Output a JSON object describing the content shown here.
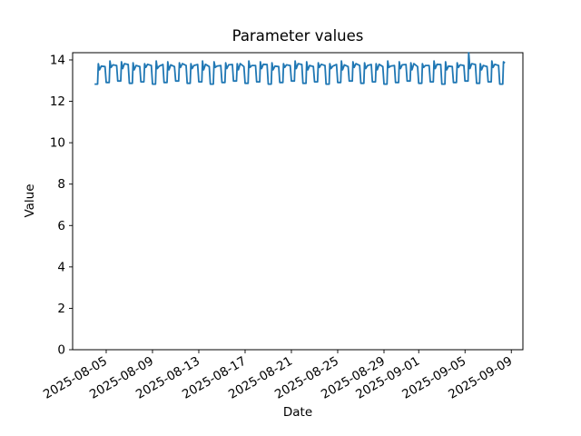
{
  "chart_data": {
    "type": "line",
    "title": "Parameter values",
    "xlabel": "Date",
    "ylabel": "Value",
    "legend": "none",
    "grid": false,
    "line_color": "#1f77b4",
    "axis_color": "#000000",
    "background_color": "#ffffff",
    "x_unit": "days since 2025-08-04T00:00",
    "xlim": [
      -1.9,
      37.0
    ],
    "ylim": [
      0,
      14.35
    ],
    "y_ticks": [
      0,
      2,
      4,
      6,
      8,
      10,
      12,
      14
    ],
    "x_ticks": [
      {
        "label": "2025-08-05",
        "d": 1
      },
      {
        "label": "2025-08-09",
        "d": 5
      },
      {
        "label": "2025-08-13",
        "d": 9
      },
      {
        "label": "2025-08-17",
        "d": 13
      },
      {
        "label": "2025-08-21",
        "d": 17
      },
      {
        "label": "2025-08-25",
        "d": 21
      },
      {
        "label": "2025-08-29",
        "d": 25
      },
      {
        "label": "2025-09-01",
        "d": 28
      },
      {
        "label": "2025-09-05",
        "d": 32
      },
      {
        "label": "2025-09-09",
        "d": 36
      }
    ],
    "points": [
      [
        0,
        12.83
      ],
      [
        0.26,
        12.83
      ],
      [
        0.32,
        13.82
      ],
      [
        0.42,
        13.52
      ],
      [
        0.58,
        13.7
      ],
      [
        0.9,
        13.68
      ],
      [
        1,
        12.91
      ],
      [
        1.26,
        12.91
      ],
      [
        1.32,
        13.95
      ],
      [
        1.42,
        13.64
      ],
      [
        1.58,
        13.76
      ],
      [
        1.9,
        13.73
      ],
      [
        2,
        12.98
      ],
      [
        2.26,
        12.98
      ],
      [
        2.32,
        13.91
      ],
      [
        2.42,
        13.58
      ],
      [
        2.58,
        13.82
      ],
      [
        2.9,
        13.78
      ],
      [
        3,
        12.87
      ],
      [
        3.26,
        12.87
      ],
      [
        3.32,
        13.86
      ],
      [
        3.42,
        13.52
      ],
      [
        3.58,
        13.73
      ],
      [
        3.9,
        13.68
      ],
      [
        4,
        12.94
      ],
      [
        4.26,
        12.94
      ],
      [
        4.32,
        13.82
      ],
      [
        4.42,
        13.64
      ],
      [
        4.58,
        13.79
      ],
      [
        4.9,
        13.73
      ],
      [
        5,
        12.83
      ],
      [
        5.26,
        12.83
      ],
      [
        5.32,
        13.95
      ],
      [
        5.42,
        13.58
      ],
      [
        5.58,
        13.7
      ],
      [
        5.9,
        13.78
      ],
      [
        6,
        12.91
      ],
      [
        6.26,
        12.91
      ],
      [
        6.32,
        13.91
      ],
      [
        6.42,
        13.52
      ],
      [
        6.58,
        13.76
      ],
      [
        6.9,
        13.68
      ],
      [
        7,
        12.98
      ],
      [
        7.26,
        12.98
      ],
      [
        7.32,
        13.86
      ],
      [
        7.42,
        13.64
      ],
      [
        7.58,
        13.82
      ],
      [
        7.9,
        13.73
      ],
      [
        8,
        12.87
      ],
      [
        8.26,
        12.87
      ],
      [
        8.32,
        13.82
      ],
      [
        8.42,
        13.58
      ],
      [
        8.58,
        13.73
      ],
      [
        8.9,
        13.78
      ],
      [
        9,
        12.94
      ],
      [
        9.26,
        12.94
      ],
      [
        9.32,
        13.95
      ],
      [
        9.42,
        13.52
      ],
      [
        9.58,
        13.79
      ],
      [
        9.9,
        13.68
      ],
      [
        10,
        12.83
      ],
      [
        10.26,
        12.83
      ],
      [
        10.32,
        13.91
      ],
      [
        10.42,
        13.64
      ],
      [
        10.58,
        13.7
      ],
      [
        10.9,
        13.73
      ],
      [
        11,
        12.91
      ],
      [
        11.26,
        12.91
      ],
      [
        11.32,
        13.86
      ],
      [
        11.42,
        13.58
      ],
      [
        11.58,
        13.76
      ],
      [
        11.9,
        13.78
      ],
      [
        12,
        12.98
      ],
      [
        12.26,
        12.98
      ],
      [
        12.32,
        13.82
      ],
      [
        12.42,
        13.52
      ],
      [
        12.58,
        13.82
      ],
      [
        12.9,
        13.68
      ],
      [
        13,
        12.87
      ],
      [
        13.26,
        12.87
      ],
      [
        13.32,
        13.95
      ],
      [
        13.42,
        13.64
      ],
      [
        13.58,
        13.73
      ],
      [
        13.9,
        13.73
      ],
      [
        14,
        12.94
      ],
      [
        14.26,
        12.94
      ],
      [
        14.32,
        13.91
      ],
      [
        14.42,
        13.58
      ],
      [
        14.58,
        13.79
      ],
      [
        14.9,
        13.78
      ],
      [
        15,
        12.83
      ],
      [
        15.26,
        12.83
      ],
      [
        15.32,
        13.86
      ],
      [
        15.42,
        13.52
      ],
      [
        15.58,
        13.7
      ],
      [
        15.9,
        13.68
      ],
      [
        16,
        12.91
      ],
      [
        16.26,
        12.91
      ],
      [
        16.32,
        13.82
      ],
      [
        16.42,
        13.64
      ],
      [
        16.58,
        13.76
      ],
      [
        16.9,
        13.73
      ],
      [
        17,
        12.98
      ],
      [
        17.26,
        12.98
      ],
      [
        17.32,
        13.95
      ],
      [
        17.42,
        13.58
      ],
      [
        17.58,
        13.82
      ],
      [
        17.9,
        13.78
      ],
      [
        18,
        12.87
      ],
      [
        18.26,
        12.87
      ],
      [
        18.32,
        13.91
      ],
      [
        18.42,
        13.52
      ],
      [
        18.58,
        13.73
      ],
      [
        18.9,
        13.68
      ],
      [
        19,
        12.94
      ],
      [
        19.26,
        12.94
      ],
      [
        19.32,
        13.86
      ],
      [
        19.42,
        13.64
      ],
      [
        19.58,
        13.79
      ],
      [
        19.9,
        13.73
      ],
      [
        20,
        12.83
      ],
      [
        20.26,
        12.83
      ],
      [
        20.32,
        13.82
      ],
      [
        20.42,
        13.58
      ],
      [
        20.58,
        13.7
      ],
      [
        20.9,
        13.78
      ],
      [
        21,
        12.91
      ],
      [
        21.26,
        12.91
      ],
      [
        21.32,
        13.95
      ],
      [
        21.42,
        13.52
      ],
      [
        21.58,
        13.76
      ],
      [
        21.9,
        13.68
      ],
      [
        22,
        12.98
      ],
      [
        22.26,
        12.98
      ],
      [
        22.32,
        13.91
      ],
      [
        22.42,
        13.64
      ],
      [
        22.58,
        13.82
      ],
      [
        22.9,
        13.73
      ],
      [
        23,
        12.87
      ],
      [
        23.26,
        12.87
      ],
      [
        23.32,
        13.86
      ],
      [
        23.42,
        13.58
      ],
      [
        23.58,
        13.73
      ],
      [
        23.9,
        13.78
      ],
      [
        24,
        12.94
      ],
      [
        24.26,
        12.94
      ],
      [
        24.32,
        13.82
      ],
      [
        24.42,
        13.52
      ],
      [
        24.58,
        13.79
      ],
      [
        24.9,
        13.68
      ],
      [
        25,
        12.83
      ],
      [
        25.26,
        12.83
      ],
      [
        25.32,
        13.95
      ],
      [
        25.42,
        13.64
      ],
      [
        25.58,
        13.7
      ],
      [
        25.9,
        13.73
      ],
      [
        26,
        12.91
      ],
      [
        26.26,
        12.91
      ],
      [
        26.32,
        13.91
      ],
      [
        26.42,
        13.58
      ],
      [
        26.58,
        13.76
      ],
      [
        26.9,
        13.78
      ],
      [
        27,
        12.98
      ],
      [
        27.26,
        12.98
      ],
      [
        27.32,
        13.86
      ],
      [
        27.42,
        13.52
      ],
      [
        27.58,
        13.82
      ],
      [
        27.9,
        13.68
      ],
      [
        28,
        12.87
      ],
      [
        28.26,
        12.87
      ],
      [
        28.32,
        13.82
      ],
      [
        28.42,
        13.64
      ],
      [
        28.58,
        13.73
      ],
      [
        28.9,
        13.73
      ],
      [
        29,
        12.94
      ],
      [
        29.26,
        12.94
      ],
      [
        29.32,
        13.95
      ],
      [
        29.42,
        13.58
      ],
      [
        29.58,
        13.79
      ],
      [
        29.9,
        13.78
      ],
      [
        30,
        12.83
      ],
      [
        30.26,
        12.83
      ],
      [
        30.32,
        13.91
      ],
      [
        30.42,
        13.52
      ],
      [
        30.58,
        13.7
      ],
      [
        30.9,
        13.68
      ],
      [
        31,
        12.91
      ],
      [
        31.26,
        12.91
      ],
      [
        31.32,
        13.86
      ],
      [
        31.42,
        13.64
      ],
      [
        31.58,
        13.76
      ],
      [
        31.9,
        13.73
      ],
      [
        32,
        12.98
      ],
      [
        32.26,
        12.98
      ],
      [
        32.32,
        14.35
      ],
      [
        32.42,
        13.58
      ],
      [
        32.58,
        13.82
      ],
      [
        32.9,
        13.78
      ],
      [
        33,
        12.87
      ],
      [
        33.26,
        12.87
      ],
      [
        33.32,
        13.82
      ],
      [
        33.42,
        13.52
      ],
      [
        33.58,
        13.73
      ],
      [
        33.9,
        13.68
      ],
      [
        34,
        12.94
      ],
      [
        34.26,
        12.94
      ],
      [
        34.32,
        13.95
      ],
      [
        34.42,
        13.64
      ],
      [
        34.58,
        13.79
      ],
      [
        34.9,
        13.73
      ],
      [
        35,
        12.83
      ],
      [
        35.26,
        12.83
      ],
      [
        35.32,
        13.91
      ],
      [
        35.45,
        13.85
      ]
    ]
  }
}
